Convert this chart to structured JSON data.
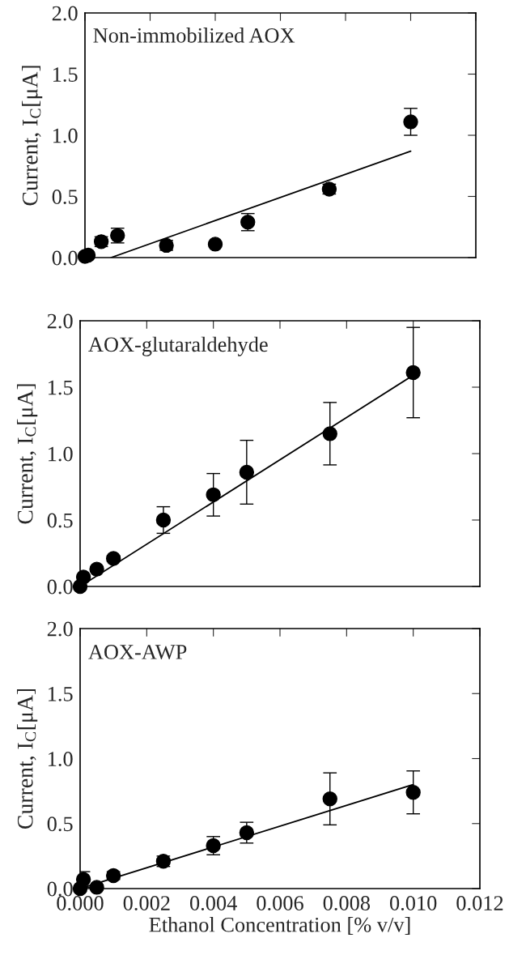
{
  "chart_data": [
    {
      "type": "scatter",
      "title": "Non-immobilized AOX",
      "ylabel": "Current, I$_{C}$[μA]",
      "xlim": [
        0,
        0.012
      ],
      "ylim": [
        0,
        2.0
      ],
      "xticks": [
        0,
        0.002,
        0.004,
        0.006,
        0.008,
        0.01,
        0.012
      ],
      "yticks": [
        {
          "value": 0,
          "label": "0.0"
        },
        {
          "value": 0.5,
          "label": "0.5"
        },
        {
          "value": 1,
          "label": "1.0"
        },
        {
          "value": 1.5,
          "label": "1.5"
        },
        {
          "value": 2,
          "label": "2.0"
        }
      ],
      "tick_labels": "y",
      "grid": false,
      "legend": false,
      "series": [
        {
          "type": "scatter",
          "marker": "circle",
          "color": "#000000",
          "x": [
            0,
            0.0001,
            0.0005,
            0.001,
            0.0025,
            0.004,
            0.005,
            0.0075,
            0.01
          ],
          "values": [
            0.01,
            0.02,
            0.13,
            0.18,
            0.1,
            0.11,
            0.29,
            0.56,
            1.11
          ],
          "errors": [
            null,
            null,
            0.04,
            0.06,
            0.04,
            0.01,
            0.07,
            0.04,
            0.11
          ]
        },
        {
          "type": "line",
          "color": "#000000",
          "x": [
            0.0008,
            0.01
          ],
          "values": [
            0,
            0.87
          ]
        }
      ]
    },
    {
      "type": "scatter",
      "title": "AOX-glutaraldehyde",
      "ylabel": "Current, I$_{C}$[μA]",
      "xlim": [
        0,
        0.012
      ],
      "ylim": [
        0,
        2.0
      ],
      "xticks": [
        0,
        0.002,
        0.004,
        0.006,
        0.008,
        0.01,
        0.012
      ],
      "yticks": [
        {
          "value": 0,
          "label": "0.0"
        },
        {
          "value": 0.5,
          "label": "0.5"
        },
        {
          "value": 1,
          "label": "1.0"
        },
        {
          "value": 1.5,
          "label": "1.5"
        },
        {
          "value": 2,
          "label": "2.0"
        }
      ],
      "tick_labels": "y",
      "grid": false,
      "legend": false,
      "series": [
        {
          "type": "scatter",
          "marker": "circle",
          "color": "#000000",
          "x": [
            0,
            0.0001,
            0.0005,
            0.001,
            0.0025,
            0.004,
            0.005,
            0.0075,
            0.01
          ],
          "values": [
            0,
            0.07,
            0.13,
            0.21,
            0.5,
            0.69,
            0.86,
            1.15,
            1.61
          ],
          "errors": [
            null,
            null,
            null,
            0.02,
            0.1,
            0.16,
            0.24,
            0.235,
            0.34
          ]
        },
        {
          "type": "line",
          "color": "#000000",
          "x": [
            0,
            0.01
          ],
          "values": [
            0,
            1.59
          ]
        }
      ]
    },
    {
      "type": "scatter",
      "title": "AOX-AWP",
      "ylabel": "Current, I$_{C}$[μA]",
      "xlabel": "Ethanol Concentration [% v/v]",
      "xlim": [
        0,
        0.012
      ],
      "ylim": [
        0,
        2.0
      ],
      "xticks": [
        {
          "value": 0,
          "label": "0.000"
        },
        0.002,
        0.004,
        0.006,
        0.008,
        {
          "value": 0.01,
          "label": "0.010"
        },
        0.012
      ],
      "yticks": [
        {
          "value": 0,
          "label": "0.0"
        },
        {
          "value": 0.5,
          "label": "0.5"
        },
        {
          "value": 1,
          "label": "1.0"
        },
        {
          "value": 1.5,
          "label": "1.5"
        },
        {
          "value": 2,
          "label": "2.0"
        }
      ],
      "grid": false,
      "legend": false,
      "series": [
        {
          "type": "scatter",
          "marker": "circle",
          "color": "#000000",
          "x": [
            0,
            0.0001,
            0.0005,
            0.001,
            0.0025,
            0.004,
            0.005,
            0.0075,
            0.01
          ],
          "values": [
            0,
            0.07,
            0.01,
            0.1,
            0.21,
            0.33,
            0.43,
            0.69,
            0.74
          ],
          "errors": [
            null,
            0.06,
            null,
            0.03,
            0.04,
            0.07,
            0.08,
            0.2,
            0.165
          ]
        },
        {
          "type": "line",
          "color": "#000000",
          "x": [
            0,
            0.01
          ],
          "values": [
            0,
            0.8
          ]
        }
      ]
    }
  ]
}
